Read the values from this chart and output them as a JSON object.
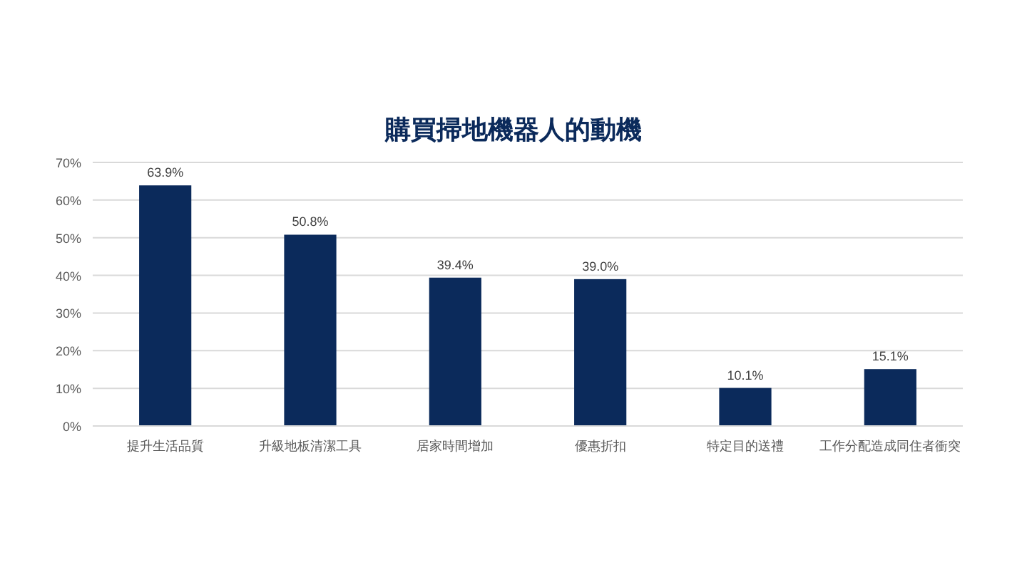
{
  "chart_data": {
    "type": "bar",
    "title": "購買掃地機器人的動機",
    "categories": [
      "提升生活品質",
      "升級地板清潔工具",
      "居家時間增加",
      "優惠折扣",
      "特定目的送禮",
      "工作分配造成同住者衝突"
    ],
    "values": [
      63.9,
      50.8,
      39.4,
      39.0,
      10.1,
      15.1
    ],
    "value_labels": [
      "63.9%",
      "50.8%",
      "39.4%",
      "39.0%",
      "10.1%",
      "15.1%"
    ],
    "color": "#0b2a5b",
    "ylim": [
      0,
      70
    ],
    "yticks": [
      {
        "value": 0,
        "label": "0%"
      },
      {
        "value": 10,
        "label": "10%"
      },
      {
        "value": 20,
        "label": "20%"
      },
      {
        "value": 30,
        "label": "30%"
      },
      {
        "value": 40,
        "label": "40%"
      },
      {
        "value": 50,
        "label": "50%"
      },
      {
        "value": 60,
        "label": "60%"
      },
      {
        "value": 70,
        "label": "70%"
      }
    ],
    "grid": "y"
  }
}
